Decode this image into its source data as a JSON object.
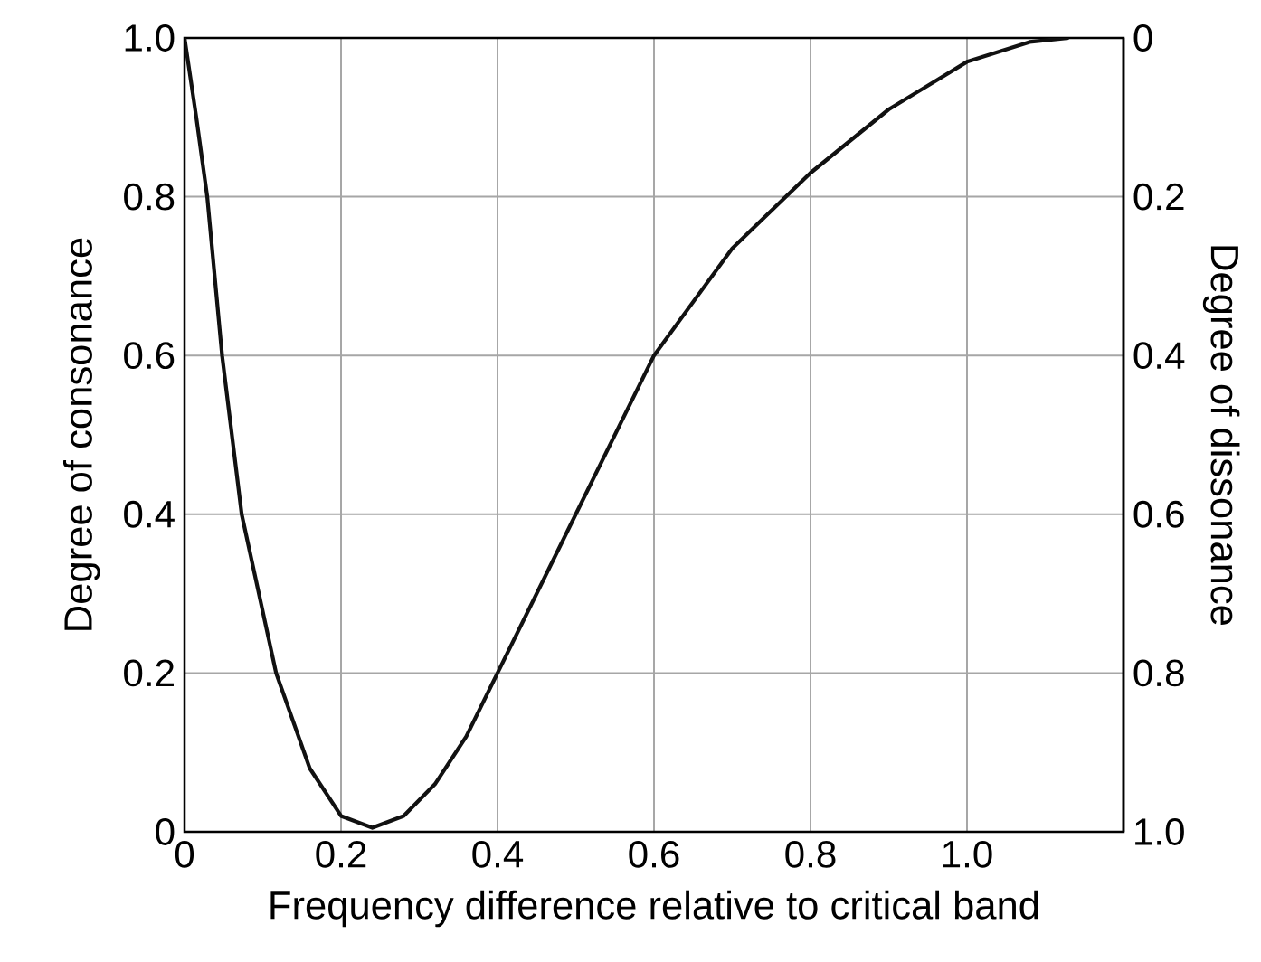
{
  "chart_data": {
    "type": "line",
    "xlabel": "Frequency difference relative to critical band",
    "ylabel": "Degree of consonance",
    "y2label": "Degree of dissonance",
    "series": [
      {
        "color": "#111111",
        "x": [
          0,
          0.015,
          0.029,
          0.048,
          0.073,
          0.117,
          0.16,
          0.2,
          0.24,
          0.28,
          0.32,
          0.36,
          0.4,
          0.46,
          0.5,
          0.6,
          0.7,
          0.8,
          0.9,
          1.0,
          1.08,
          1.13
        ],
        "values": [
          1.0,
          0.9,
          0.8,
          0.6,
          0.4,
          0.2,
          0.08,
          0.02,
          0.005,
          0.02,
          0.06,
          0.12,
          0.2,
          0.32,
          0.4,
          0.6,
          0.735,
          0.83,
          0.91,
          0.97,
          0.995,
          1.0
        ]
      }
    ],
    "xlim": [
      0,
      1.2
    ],
    "xticks": [
      0,
      0.2,
      0.4,
      0.6,
      0.8,
      {
        "value": 1.0,
        "label": "1.0"
      }
    ],
    "ylim": [
      0,
      1
    ],
    "yticks": [
      0,
      0.2,
      0.4,
      0.6,
      0.8,
      {
        "value": 1.0,
        "label": "1.0"
      }
    ],
    "y2lim": [
      1,
      0
    ],
    "y2ticks": [
      0,
      0.2,
      0.4,
      0.6,
      0.8,
      {
        "value": 1.0,
        "label": "1.0"
      }
    ],
    "grid": true,
    "marker": "none",
    "line_style": "solid"
  }
}
